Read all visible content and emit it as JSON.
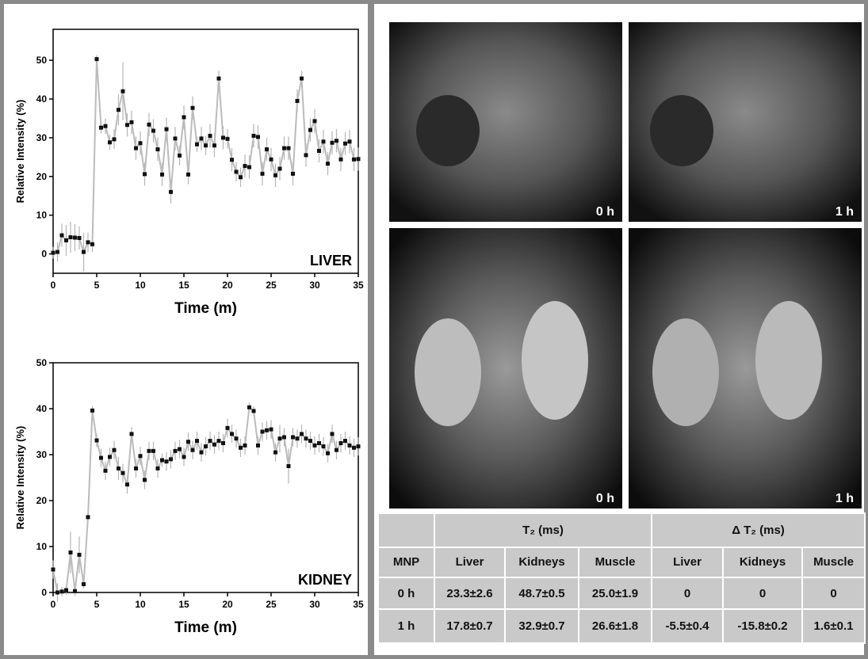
{
  "chart_data": [
    {
      "type": "line",
      "y_label": "Relative Intensity (%)",
      "x_label": "Time (m)",
      "annotation": "LIVER",
      "line_color": "#bbbbbb",
      "marker_color": "#111111",
      "xlim": [
        0,
        35
      ],
      "xticks": [
        0,
        5,
        10,
        15,
        20,
        25,
        30,
        35
      ],
      "ylim": [
        -5,
        58
      ],
      "yticks": [
        0,
        10,
        20,
        30,
        40,
        50
      ],
      "x": [
        0,
        0.5,
        1,
        1.5,
        2,
        2.5,
        3,
        3.5,
        4,
        4.5,
        5,
        5.5,
        6,
        6.5,
        7,
        7.5,
        8,
        8.5,
        9,
        9.5,
        10,
        10.5,
        11,
        11.5,
        12,
        12.5,
        13,
        13.5,
        14,
        14.5,
        15,
        15.5,
        16,
        16.5,
        17,
        17.5,
        18,
        18.5,
        19,
        19.5,
        20,
        20.5,
        21,
        21.5,
        22,
        22.5,
        23,
        23.5,
        24,
        24.5,
        25,
        25.5,
        26,
        26.5,
        27,
        27.5,
        28,
        28.5,
        29,
        29.5,
        30,
        30.5,
        31,
        31.5,
        32,
        32.5,
        33,
        33.5,
        34,
        34.5,
        35
      ],
      "values": [
        0.3,
        0.5,
        4.8,
        3.5,
        4.3,
        4.2,
        4.1,
        0.5,
        3.0,
        2.5,
        50.3,
        32.6,
        33.0,
        28.8,
        29.6,
        37.2,
        42.0,
        33.3,
        34.0,
        27.3,
        28.6,
        20.6,
        33.4,
        31.8,
        27.0,
        20.5,
        32.2,
        16.0,
        29.8,
        25.4,
        35.3,
        20.5,
        37.7,
        28.3,
        29.8,
        28.0,
        30.5,
        28.0,
        45.3,
        30.0,
        29.7,
        24.3,
        21.2,
        19.8,
        22.7,
        22.4,
        30.5,
        30.2,
        20.7,
        27.0,
        24.4,
        20.3,
        22.0,
        27.3,
        27.3,
        20.7,
        39.5,
        45.3,
        25.5,
        32.0,
        34.3,
        26.6,
        29.0,
        23.3,
        28.7,
        29.2,
        24.4,
        28.5,
        29.0,
        24.4,
        24.5
      ],
      "errors": [
        1.5,
        2.5,
        3,
        4,
        4,
        3.5,
        3,
        5,
        2.5,
        2,
        1,
        1.5,
        2,
        2,
        2.5,
        4,
        7.5,
        3,
        3,
        3,
        3,
        3,
        3,
        3,
        3,
        3,
        3,
        3,
        3,
        2.5,
        3,
        2.5,
        3,
        2,
        3,
        2.5,
        3,
        3,
        2,
        3,
        2.5,
        3,
        2.5,
        2.5,
        3,
        3,
        3,
        3,
        3,
        3,
        3,
        3,
        3,
        3,
        3,
        3,
        3,
        2,
        3,
        3,
        3,
        3,
        3,
        3,
        3,
        3,
        3,
        3,
        3,
        3,
        3
      ]
    },
    {
      "type": "line",
      "y_label": "Relative Intensity (%)",
      "x_label": "Time (m)",
      "annotation": "KIDNEY",
      "line_color": "#bbbbbb",
      "marker_color": "#111111",
      "xlim": [
        0,
        35
      ],
      "xticks": [
        0,
        5,
        10,
        15,
        20,
        25,
        30,
        35
      ],
      "ylim": [
        0,
        50
      ],
      "yticks": [
        0,
        10,
        20,
        30,
        40,
        50
      ],
      "x": [
        0,
        0.5,
        1,
        1.5,
        2,
        2.5,
        3,
        3.5,
        4,
        4.5,
        5,
        5.5,
        6,
        6.5,
        7,
        7.5,
        8,
        8.5,
        9,
        9.5,
        10,
        10.5,
        11,
        11.5,
        12,
        12.5,
        13,
        13.5,
        14,
        14.5,
        15,
        15.5,
        16,
        16.5,
        17,
        17.5,
        18,
        18.5,
        19,
        19.5,
        20,
        20.5,
        21,
        21.5,
        22,
        22.5,
        23,
        23.5,
        24,
        24.5,
        25,
        25.5,
        26,
        26.5,
        27,
        27.5,
        28,
        28.5,
        29,
        29.5,
        30,
        30.5,
        31,
        31.5,
        32,
        32.5,
        33,
        33.5,
        34,
        34.5,
        35
      ],
      "values": [
        5.0,
        0.0,
        0.2,
        0.5,
        8.7,
        0.3,
        8.2,
        1.8,
        16.4,
        39.6,
        33.1,
        29.3,
        26.5,
        29.5,
        31.0,
        27.0,
        26.0,
        23.5,
        34.5,
        27.0,
        29.7,
        24.5,
        30.8,
        30.8,
        27.0,
        28.8,
        28.5,
        29.0,
        30.8,
        31.2,
        29.5,
        32.8,
        31.0,
        33.0,
        30.5,
        31.8,
        33.0,
        32.2,
        33.0,
        32.5,
        35.8,
        34.5,
        33.5,
        31.5,
        32.0,
        40.3,
        39.5,
        32.0,
        35.0,
        35.3,
        35.5,
        30.5,
        33.5,
        33.8,
        27.5,
        33.8,
        33.5,
        34.5,
        33.5,
        33.0,
        32.0,
        32.5,
        31.8,
        30.3,
        34.5,
        31.0,
        32.5,
        33.0,
        32.0,
        31.5,
        31.8
      ],
      "errors": [
        2,
        2,
        1,
        1,
        4.5,
        1,
        4,
        1,
        1,
        1,
        1.5,
        2,
        2,
        2,
        2,
        2.5,
        2,
        2,
        1.5,
        2,
        2,
        2,
        2,
        2,
        2,
        1.5,
        2,
        2,
        2,
        2,
        2,
        2,
        2,
        2,
        2,
        2,
        2,
        2,
        2,
        2,
        2,
        2,
        2,
        2,
        2,
        1,
        1,
        2,
        2,
        2,
        2,
        2,
        3,
        2,
        3.8,
        2,
        2,
        2,
        2,
        2,
        2,
        2,
        2,
        2,
        2,
        2,
        2,
        2,
        2,
        2,
        2
      ]
    }
  ],
  "images": [
    {
      "label": "0 h"
    },
    {
      "label": "1 h"
    },
    {
      "label": "0 h"
    },
    {
      "label": "1 h"
    }
  ],
  "table": {
    "group_headers": [
      "T₂ (ms)",
      "Δ T₂ (ms)"
    ],
    "header": [
      "MNP",
      "Liver",
      "Kidneys",
      "Muscle",
      "Liver",
      "Kidneys",
      "Muscle"
    ],
    "rows": [
      [
        "0 h",
        "23.3±2.6",
        "48.7±0.5",
        "25.0±1.9",
        "0",
        "0",
        "0"
      ],
      [
        "1 h",
        "17.8±0.7",
        "32.9±0.7",
        "26.6±1.8",
        "-5.5±0.4",
        "-15.8±0.2",
        "1.6±0.1"
      ]
    ]
  }
}
